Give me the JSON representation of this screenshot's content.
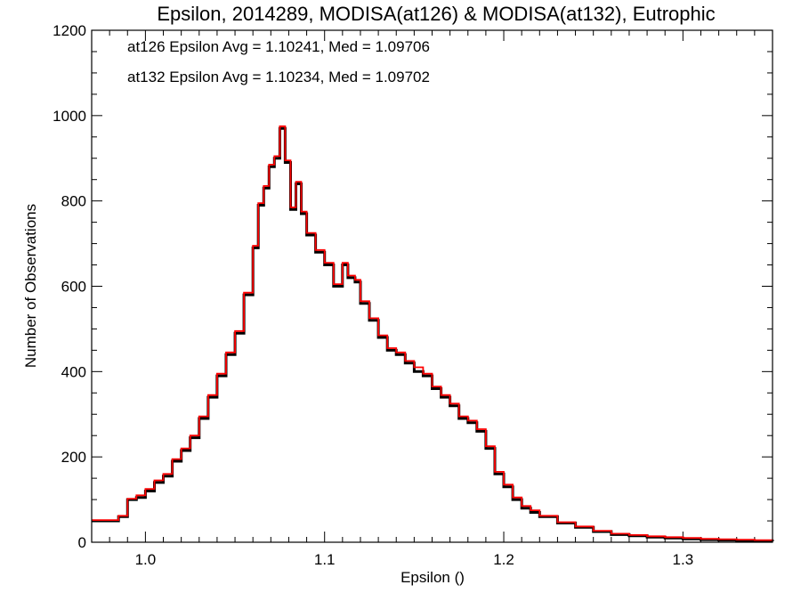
{
  "chart_data": {
    "type": "line",
    "step": true,
    "title": "Epsilon, 2014289, MODISA(at126) & MODISA(at132), Eutrophic",
    "xlabel": "Epsilon ()",
    "ylabel": "Number of Observations",
    "xlim": [
      0.97,
      1.35
    ],
    "ylim": [
      0,
      1200
    ],
    "xticks": [
      1.0,
      1.1,
      1.2,
      1.3
    ],
    "xtick_labels": [
      "1.0",
      "1.1",
      "1.2",
      "1.3"
    ],
    "yticks": [
      0,
      200,
      400,
      600,
      800,
      1000,
      1200
    ],
    "ytick_labels": [
      "0",
      "200",
      "400",
      "600",
      "800",
      "1000",
      "1200"
    ],
    "annotations": [
      {
        "text": "at126 Epsilon Avg = 1.10241, Med = 1.09706",
        "color": "#000000"
      },
      {
        "text": "at132 Epsilon Avg = 1.10234, Med = 1.09702",
        "color": "#ff0000"
      }
    ],
    "series": [
      {
        "color": "#000000",
        "x": [
          0.97,
          0.985,
          0.99,
          0.995,
          1.0,
          1.005,
          1.01,
          1.015,
          1.02,
          1.025,
          1.03,
          1.035,
          1.04,
          1.045,
          1.05,
          1.055,
          1.06,
          1.063,
          1.066,
          1.069,
          1.072,
          1.075,
          1.078,
          1.081,
          1.084,
          1.087,
          1.09,
          1.095,
          1.1,
          1.105,
          1.11,
          1.113,
          1.117,
          1.12,
          1.125,
          1.13,
          1.135,
          1.14,
          1.145,
          1.15,
          1.155,
          1.16,
          1.165,
          1.17,
          1.175,
          1.18,
          1.185,
          1.19,
          1.195,
          1.2,
          1.205,
          1.21,
          1.215,
          1.22,
          1.23,
          1.24,
          1.25,
          1.26,
          1.27,
          1.28,
          1.29,
          1.3,
          1.31,
          1.32,
          1.33,
          1.34,
          1.35
        ],
        "y": [
          50,
          60,
          100,
          105,
          120,
          140,
          155,
          190,
          215,
          245,
          290,
          340,
          390,
          440,
          490,
          580,
          690,
          790,
          830,
          880,
          900,
          970,
          890,
          780,
          840,
          770,
          720,
          680,
          650,
          600,
          650,
          620,
          610,
          560,
          520,
          480,
          450,
          440,
          420,
          400,
          390,
          360,
          340,
          320,
          290,
          280,
          260,
          220,
          160,
          130,
          100,
          80,
          70,
          60,
          45,
          35,
          25,
          18,
          15,
          12,
          10,
          8,
          6,
          5,
          4,
          3,
          2
        ]
      },
      {
        "color": "#ff0000",
        "x": [
          0.97,
          0.985,
          0.99,
          0.995,
          1.0,
          1.005,
          1.01,
          1.015,
          1.02,
          1.025,
          1.03,
          1.035,
          1.04,
          1.045,
          1.05,
          1.055,
          1.06,
          1.063,
          1.066,
          1.069,
          1.072,
          1.075,
          1.078,
          1.081,
          1.084,
          1.087,
          1.09,
          1.095,
          1.1,
          1.105,
          1.11,
          1.113,
          1.117,
          1.12,
          1.125,
          1.13,
          1.135,
          1.14,
          1.145,
          1.15,
          1.155,
          1.16,
          1.165,
          1.17,
          1.175,
          1.18,
          1.185,
          1.19,
          1.195,
          1.2,
          1.205,
          1.21,
          1.215,
          1.22,
          1.23,
          1.24,
          1.25,
          1.26,
          1.27,
          1.28,
          1.29,
          1.3,
          1.31,
          1.32,
          1.33,
          1.34,
          1.35
        ],
        "y": [
          52,
          62,
          102,
          110,
          125,
          145,
          160,
          195,
          220,
          250,
          295,
          345,
          395,
          445,
          495,
          585,
          695,
          795,
          835,
          885,
          905,
          975,
          895,
          785,
          845,
          775,
          725,
          685,
          655,
          605,
          655,
          625,
          615,
          565,
          525,
          485,
          455,
          445,
          425,
          410,
          395,
          365,
          345,
          325,
          295,
          285,
          265,
          225,
          165,
          135,
          105,
          85,
          75,
          62,
          47,
          37,
          27,
          20,
          17,
          14,
          12,
          10,
          8,
          7,
          6,
          5,
          4
        ]
      }
    ]
  }
}
